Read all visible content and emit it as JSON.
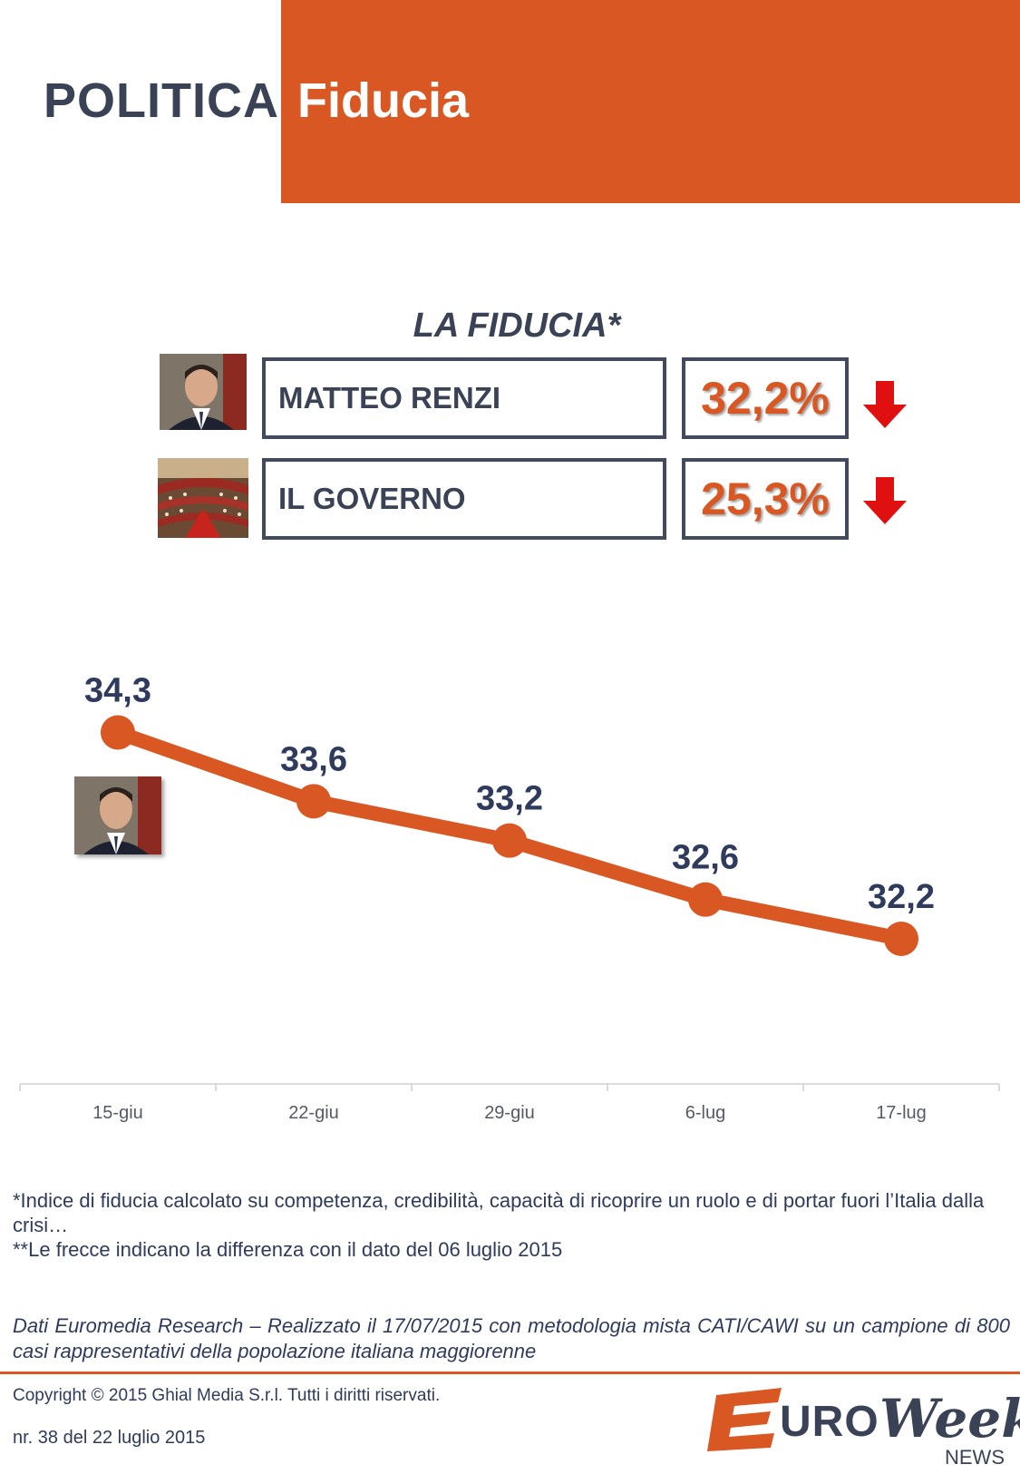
{
  "header": {
    "section": "POLITICA",
    "title": "Fiducia"
  },
  "summary": {
    "heading": "LA FIDUCIA*",
    "rows": [
      {
        "name": "MATTEO RENZI",
        "value": "32,2%",
        "trend": "down",
        "photo_icon": "renzi-portrait-icon"
      },
      {
        "name": "IL GOVERNO",
        "value": "25,3%",
        "trend": "down",
        "photo_icon": "parliament-chamber-icon"
      }
    ]
  },
  "chart_data": {
    "type": "line",
    "categories": [
      "15-giu",
      "22-giu",
      "29-giu",
      "6-lug",
      "17-lug"
    ],
    "values": [
      34.3,
      33.6,
      33.2,
      32.6,
      32.2
    ],
    "value_labels": [
      "34,3",
      "33,6",
      "33,2",
      "32,6",
      "32,2"
    ],
    "ylim": [
      31.6,
      34.6
    ],
    "grid": false,
    "line_color": "#d95722",
    "label_color": "#2f3b5c"
  },
  "notes": {
    "note1": "*Indice di fiducia calcolato su competenza, credibilità, capacità di ricoprire un ruolo e di portar fuori l’Italia dalla crisi…",
    "note2": "**Le frecce indicano la differenza con il dato del 06 luglio 2015"
  },
  "source": "Dati Euromedia Research – Realizzato il 17/07/2015 con metodologia mista CATI/CAWI su un campione di 800 casi rappresentativi della popolazione italiana maggiorenne",
  "footer": {
    "copyright": "Copyright © 2015 Ghial Media S.r.l. Tutti i diritti riservati.",
    "issue": "nr. 38 del 22 luglio 2015",
    "logo": {
      "part1": "URO",
      "part2": "Week",
      "part3": "NEWS"
    }
  },
  "colors": {
    "accent": "#d95722",
    "text": "#3a4256",
    "arrow": "#e01010"
  }
}
